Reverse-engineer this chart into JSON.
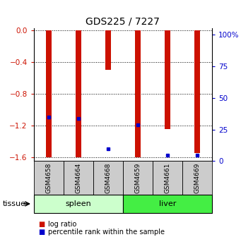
{
  "title": "GDS225 / 7227",
  "samples": [
    "GSM4658",
    "GSM4664",
    "GSM4668",
    "GSM4659",
    "GSM4661",
    "GSM4669"
  ],
  "log_ratios": [
    -1.6,
    -1.6,
    -0.5,
    -1.6,
    -1.25,
    -1.55
  ],
  "percentile_ranks": [
    35,
    34,
    10,
    29,
    5,
    5
  ],
  "groups": [
    "spleen",
    "spleen",
    "spleen",
    "liver",
    "liver",
    "liver"
  ],
  "group_labels": [
    "spleen",
    "liver"
  ],
  "spleen_color": "#ccffcc",
  "liver_color": "#44ee44",
  "bar_color": "#cc1100",
  "blue_color": "#0000cc",
  "sample_box_color": "#cccccc",
  "ymin": -1.65,
  "ymax": 0.02,
  "yticks_left": [
    0,
    -0.4,
    -0.8,
    -1.2,
    -1.6
  ],
  "pct_min": 0,
  "pct_max": 105,
  "yticks_right_pct": [
    0,
    25,
    50,
    75,
    100
  ],
  "ytick_right_labels": [
    "0",
    "25",
    "50",
    "75",
    "100%"
  ],
  "bar_width": 0.18,
  "title_fontsize": 10,
  "tick_fontsize": 7.5,
  "sample_fontsize": 6.5,
  "tissue_fontsize": 8,
  "legend_fontsize": 7
}
